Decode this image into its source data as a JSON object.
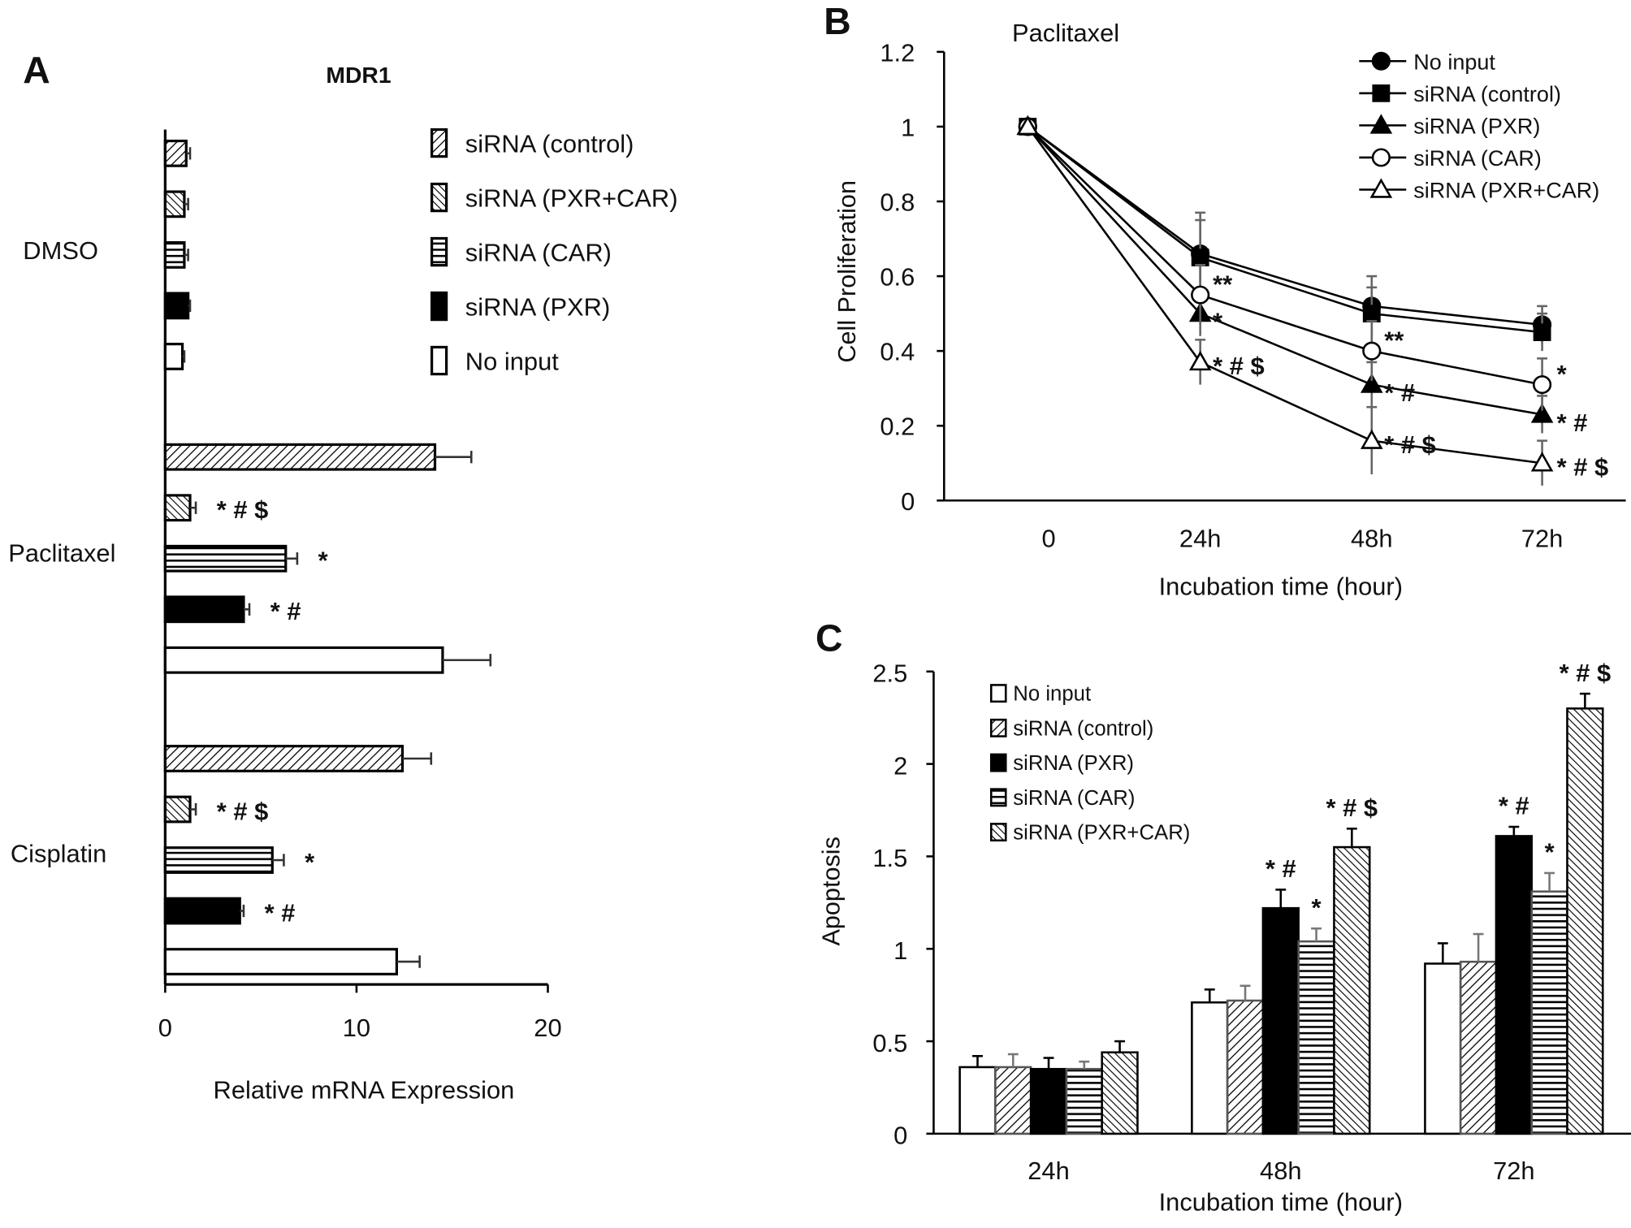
{
  "chart_data": [
    {
      "panel": "A",
      "type": "bar",
      "orientation": "horizontal",
      "title": "MDR1",
      "xlabel": "Relative mRNA Expression",
      "ylabel": "",
      "xlim": [
        0,
        20
      ],
      "xticks": [
        "0",
        "10",
        "20"
      ],
      "categories": [
        "DMSO",
        "Paclitaxel",
        "Cisplatin"
      ],
      "legend": [
        "siRNA (control)",
        "siRNA (PXR+CAR)",
        "siRNA (CAR)",
        "siRNA (PXR)",
        "No input"
      ],
      "legend_position": "top-right",
      "series": [
        {
          "name": "siRNA (control)",
          "pattern": "diag-up",
          "values": [
            1.1,
            14.1,
            12.4
          ],
          "errors": [
            0.2,
            1.9,
            1.5
          ],
          "annotations": [
            "",
            "",
            ""
          ]
        },
        {
          "name": "siRNA (PXR+CAR)",
          "pattern": "diag-down",
          "values": [
            1.0,
            1.3,
            1.3
          ],
          "errors": [
            0.2,
            0.3,
            0.3
          ],
          "annotations": [
            "",
            "* # $",
            "* # $"
          ]
        },
        {
          "name": "siRNA (CAR)",
          "pattern": "horizontal",
          "values": [
            1.0,
            6.3,
            5.6
          ],
          "errors": [
            0.2,
            0.6,
            0.6
          ],
          "annotations": [
            "",
            "*",
            "*"
          ]
        },
        {
          "name": "siRNA (PXR)",
          "pattern": "solid-black",
          "values": [
            1.2,
            4.1,
            3.9
          ],
          "errors": [
            0.1,
            0.3,
            0.2
          ],
          "annotations": [
            "",
            "* #",
            "* #"
          ]
        },
        {
          "name": "No input",
          "pattern": "white",
          "values": [
            0.9,
            14.5,
            12.1
          ],
          "errors": [
            0.1,
            2.5,
            1.2
          ],
          "annotations": [
            "",
            "",
            ""
          ]
        }
      ]
    },
    {
      "panel": "B",
      "type": "line",
      "title": "Paclitaxel",
      "xlabel": "Incubation time (hour)",
      "ylabel": "Cell Proliferation",
      "ylim": [
        0,
        1.2
      ],
      "yticks": [
        "0",
        "0.2",
        "0.4",
        "0.6",
        "0.8",
        "1",
        "1.2"
      ],
      "x": [
        "0",
        "24h",
        "48h",
        "72h"
      ],
      "legend_position": "top-right",
      "series": [
        {
          "name": "No input",
          "marker": "filled-circle",
          "values": [
            1,
            0.66,
            0.52,
            0.47
          ],
          "errors": [
            0,
            0.11,
            0.08,
            0.05
          ],
          "annotations": [
            "",
            "",
            "",
            ""
          ]
        },
        {
          "name": "siRNA (control)",
          "marker": "filled-square",
          "values": [
            1,
            0.65,
            0.5,
            0.45
          ],
          "errors": [
            0,
            0.1,
            0.07,
            0.05
          ],
          "annotations": [
            "",
            "",
            "",
            ""
          ]
        },
        {
          "name": "siRNA (PXR)",
          "marker": "filled-triangle",
          "values": [
            1,
            0.5,
            0.31,
            0.23
          ],
          "errors": [
            0,
            0.06,
            0.06,
            0.05
          ],
          "annotations": [
            "",
            "*",
            "* #",
            "* #"
          ]
        },
        {
          "name": "siRNA (CAR)",
          "marker": "open-circle",
          "values": [
            1,
            0.55,
            0.4,
            0.31
          ],
          "errors": [
            0,
            0.08,
            0.08,
            0.07
          ],
          "annotations": [
            "",
            "**",
            "**",
            "*"
          ]
        },
        {
          "name": "siRNA (PXR+CAR)",
          "marker": "open-triangle",
          "values": [
            1,
            0.37,
            0.16,
            0.1
          ],
          "errors": [
            0,
            0.06,
            0.09,
            0.06
          ],
          "annotations": [
            "",
            "* # $",
            "* # $",
            "* # $"
          ]
        }
      ]
    },
    {
      "panel": "C",
      "type": "bar",
      "title": "",
      "xlabel": "Incubation time (hour)",
      "ylabel": "Apoptosis",
      "ylim": [
        0,
        2.5
      ],
      "yticks": [
        "0",
        "0.5",
        "1",
        "1.5",
        "2",
        "2.5"
      ],
      "categories": [
        "24h",
        "48h",
        "72h"
      ],
      "legend_position": "top-left",
      "series": [
        {
          "name": "No input",
          "pattern": "white",
          "values": [
            0.36,
            0.71,
            0.92
          ],
          "errors": [
            0.06,
            0.07,
            0.11
          ],
          "annotations": [
            "",
            "",
            ""
          ]
        },
        {
          "name": "siRNA (control)",
          "pattern": "diag-up",
          "values": [
            0.36,
            0.72,
            0.93
          ],
          "errors": [
            0.07,
            0.08,
            0.15
          ],
          "annotations": [
            "",
            "",
            ""
          ]
        },
        {
          "name": "siRNA (PXR)",
          "pattern": "solid-black",
          "values": [
            0.35,
            1.22,
            1.61
          ],
          "errors": [
            0.06,
            0.1,
            0.05
          ],
          "annotations": [
            "",
            "* #",
            "* #"
          ]
        },
        {
          "name": "siRNA (CAR)",
          "pattern": "horizontal",
          "values": [
            0.35,
            1.04,
            1.31
          ],
          "errors": [
            0.04,
            0.07,
            0.1
          ],
          "annotations": [
            "",
            "*",
            "*"
          ]
        },
        {
          "name": "siRNA (PXR+CAR)",
          "pattern": "diag-down",
          "values": [
            0.44,
            1.55,
            2.3
          ],
          "errors": [
            0.06,
            0.1,
            0.08
          ],
          "annotations": [
            "",
            "* # $",
            "* # $"
          ]
        }
      ]
    }
  ],
  "colors": {
    "ink": "#000000",
    "error_bar_gray": "#555555",
    "background": "#ffffff"
  }
}
